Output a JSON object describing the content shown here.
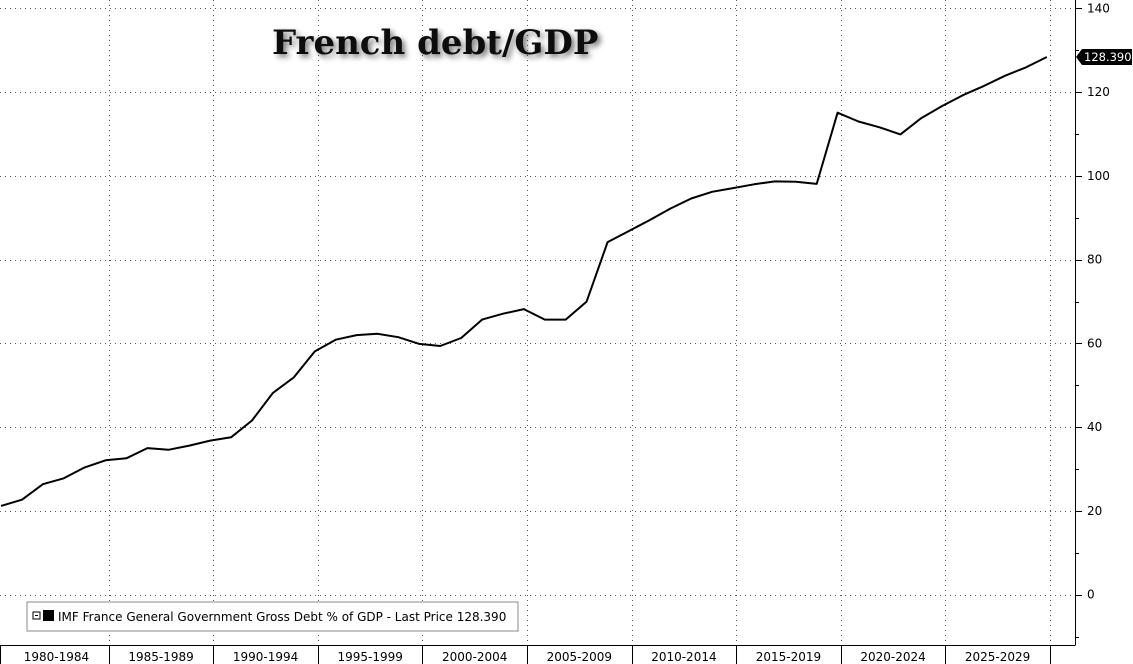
{
  "chart_data": {
    "type": "line",
    "title": "French debt/GDP",
    "xlabel": "",
    "ylabel": "",
    "x_start": 1980,
    "x_end": 2030,
    "ylim": [
      -12,
      142
    ],
    "y_ticks": [
      0,
      20,
      40,
      60,
      80,
      100,
      120,
      140
    ],
    "grid": true,
    "legend_position": "bottom-left",
    "period_labels": [
      {
        "label": "1980-1984",
        "start": 1980,
        "end": 1985
      },
      {
        "label": "1985-1989",
        "start": 1985,
        "end": 1990
      },
      {
        "label": "1990-1994",
        "start": 1990,
        "end": 1995
      },
      {
        "label": "1995-1999",
        "start": 1995,
        "end": 2000
      },
      {
        "label": "2000-2004",
        "start": 2000,
        "end": 2005
      },
      {
        "label": "2005-2009",
        "start": 2005,
        "end": 2010
      },
      {
        "label": "2010-2014",
        "start": 2010,
        "end": 2015
      },
      {
        "label": "2015-2019",
        "start": 2015,
        "end": 2020
      },
      {
        "label": "2020-2024",
        "start": 2020,
        "end": 2025
      },
      {
        "label": "2025-2029",
        "start": 2025,
        "end": 2030
      }
    ],
    "series": [
      {
        "name": "IMF France General Government Gross Debt % of GDP - Last Price 128.390",
        "color": "#000000",
        "points": [
          [
            1979.85,
            21.2
          ],
          [
            1980.85,
            22.7
          ],
          [
            1981.85,
            26.4
          ],
          [
            1982.85,
            27.8
          ],
          [
            1983.85,
            30.4
          ],
          [
            1984.85,
            32.1
          ],
          [
            1985.85,
            32.6
          ],
          [
            1986.85,
            35.0
          ],
          [
            1987.85,
            34.6
          ],
          [
            1988.85,
            35.6
          ],
          [
            1989.85,
            36.8
          ],
          [
            1990.85,
            37.6
          ],
          [
            1991.85,
            41.6
          ],
          [
            1992.85,
            48.2
          ],
          [
            1993.85,
            51.9
          ],
          [
            1994.85,
            58.1
          ],
          [
            1995.85,
            60.9
          ],
          [
            1996.85,
            62.0
          ],
          [
            1997.85,
            62.3
          ],
          [
            1998.85,
            61.5
          ],
          [
            1999.85,
            59.9
          ],
          [
            2000.85,
            59.4
          ],
          [
            2001.85,
            61.3
          ],
          [
            2002.85,
            65.7
          ],
          [
            2003.85,
            67.1
          ],
          [
            2004.85,
            68.2
          ],
          [
            2005.85,
            65.7
          ],
          [
            2006.85,
            65.7
          ],
          [
            2007.85,
            70.0
          ],
          [
            2008.85,
            84.2
          ],
          [
            2009.85,
            86.8
          ],
          [
            2010.85,
            89.4
          ],
          [
            2011.85,
            92.2
          ],
          [
            2012.85,
            94.6
          ],
          [
            2013.85,
            96.2
          ],
          [
            2014.85,
            97.1
          ],
          [
            2015.85,
            98.0
          ],
          [
            2016.85,
            98.7
          ],
          [
            2017.85,
            98.6
          ],
          [
            2018.85,
            98.1
          ],
          [
            2019.85,
            115.1
          ],
          [
            2020.85,
            113.0
          ],
          [
            2021.85,
            111.6
          ],
          [
            2022.85,
            109.9
          ],
          [
            2023.85,
            113.8
          ],
          [
            2024.85,
            116.7
          ],
          [
            2025.85,
            119.3
          ],
          [
            2026.85,
            121.5
          ],
          [
            2027.85,
            123.9
          ],
          [
            2028.85,
            125.9
          ],
          [
            2029.85,
            128.39
          ]
        ]
      }
    ],
    "last_value_label": "128.390"
  }
}
